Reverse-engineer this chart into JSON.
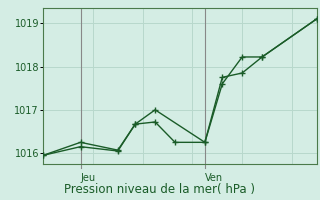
{
  "xlabel": "Pression niveau de la mer( hPa )",
  "background_color": "#d4ede4",
  "grid_color": "#b8d8cc",
  "line_color": "#1a5c28",
  "spine_color": "#4a7a4a",
  "day_line_color": "#888888",
  "ylim": [
    1015.75,
    1019.35
  ],
  "yticks": [
    1016,
    1017,
    1018,
    1019
  ],
  "xlim": [
    0,
    11
  ],
  "x_jeu_pos": 1.5,
  "x_ven_pos": 6.5,
  "x_end": 11.0,
  "series1_x": [
    0,
    1.5,
    3.0,
    3.7,
    4.5,
    5.3,
    6.5,
    7.2,
    8.0,
    8.8,
    11.0
  ],
  "series1_y": [
    1015.95,
    1016.25,
    1016.07,
    1016.67,
    1016.72,
    1016.25,
    1016.25,
    1017.6,
    1018.22,
    1018.22,
    1019.1
  ],
  "series2_x": [
    0,
    1.5,
    3.0,
    3.7,
    4.5,
    6.5,
    7.2,
    8.0,
    8.8,
    11.0
  ],
  "series2_y": [
    1015.95,
    1016.15,
    1016.05,
    1016.67,
    1017.0,
    1016.25,
    1017.75,
    1017.85,
    1018.22,
    1019.1
  ],
  "xlabel_fontsize": 8.5,
  "ytick_fontsize": 7,
  "day_label_fontsize": 7
}
